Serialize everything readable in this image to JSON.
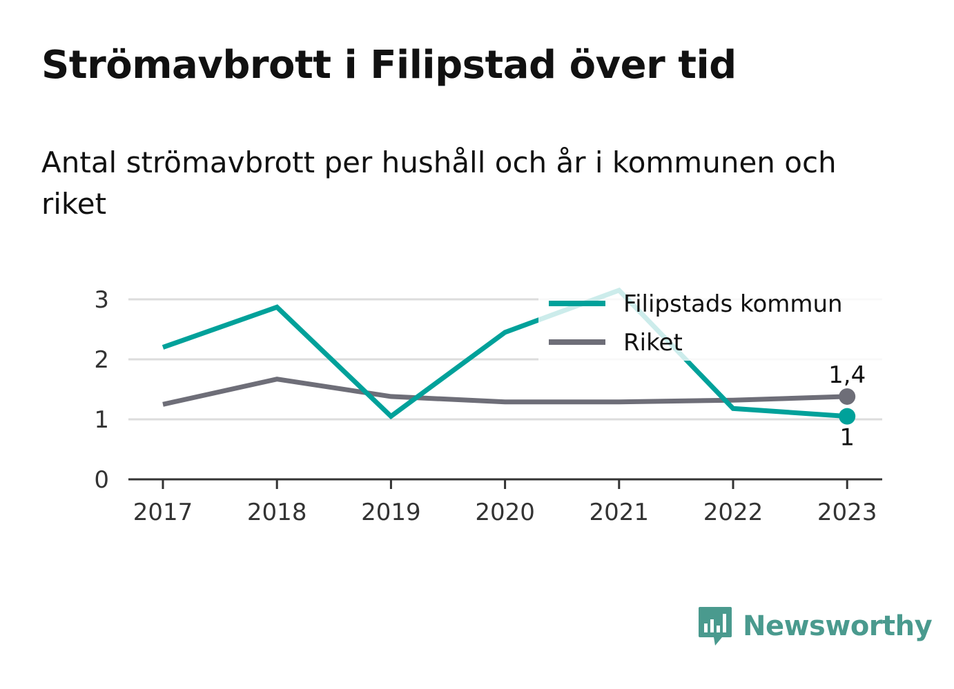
{
  "title": "Strömavbrott i Filipstad över tid",
  "subtitle": "Antal strömavbrott per hushåll och år i kommunen och riket",
  "logo_text": "Newsworthy",
  "colors": {
    "kommun": "#00a19a",
    "riket": "#6e6e78",
    "grid": "#dcdcdc",
    "axis": "#333333",
    "brand": "#4a9a8e"
  },
  "chart_data": {
    "type": "line",
    "x": [
      "2017",
      "2018",
      "2019",
      "2020",
      "2021",
      "2022",
      "2023"
    ],
    "ylim": [
      0,
      3
    ],
    "yticks": [
      "0",
      "1",
      "2",
      "3"
    ],
    "grid": true,
    "legend_position": "top-right",
    "series": [
      {
        "name": "Filipstads kommun",
        "values": [
          2.2,
          2.87,
          1.05,
          2.45,
          3.15,
          1.18,
          1.05
        ],
        "end_label": "1"
      },
      {
        "name": "Riket",
        "values": [
          1.25,
          1.67,
          1.38,
          1.29,
          1.29,
          1.32,
          1.38
        ],
        "end_label": "1,4"
      }
    ]
  }
}
